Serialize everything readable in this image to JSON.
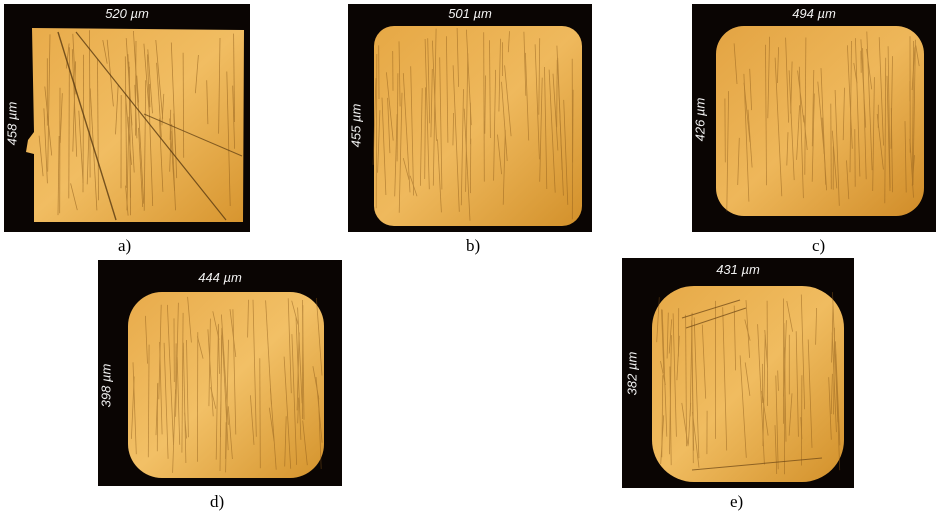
{
  "panels": [
    {
      "id": "a",
      "caption": "a)",
      "width_label": "520 µm",
      "height_label": "458 µm"
    },
    {
      "id": "b",
      "caption": "b)",
      "width_label": "501 µm",
      "height_label": "455 µm"
    },
    {
      "id": "c",
      "caption": "c)",
      "width_label": "494 µm",
      "height_label": "426 µm"
    },
    {
      "id": "d",
      "caption": "d)",
      "width_label": "444 µm",
      "height_label": "398 µm"
    },
    {
      "id": "e",
      "caption": "e)",
      "width_label": "431 µm",
      "height_label": "382 µm"
    }
  ],
  "colors": {
    "background": "#0a0503",
    "copper_light": "#f0b85a",
    "copper_mid": "#d9982f",
    "copper_dark": "#9c6218",
    "scratch": "#5a3a10"
  }
}
